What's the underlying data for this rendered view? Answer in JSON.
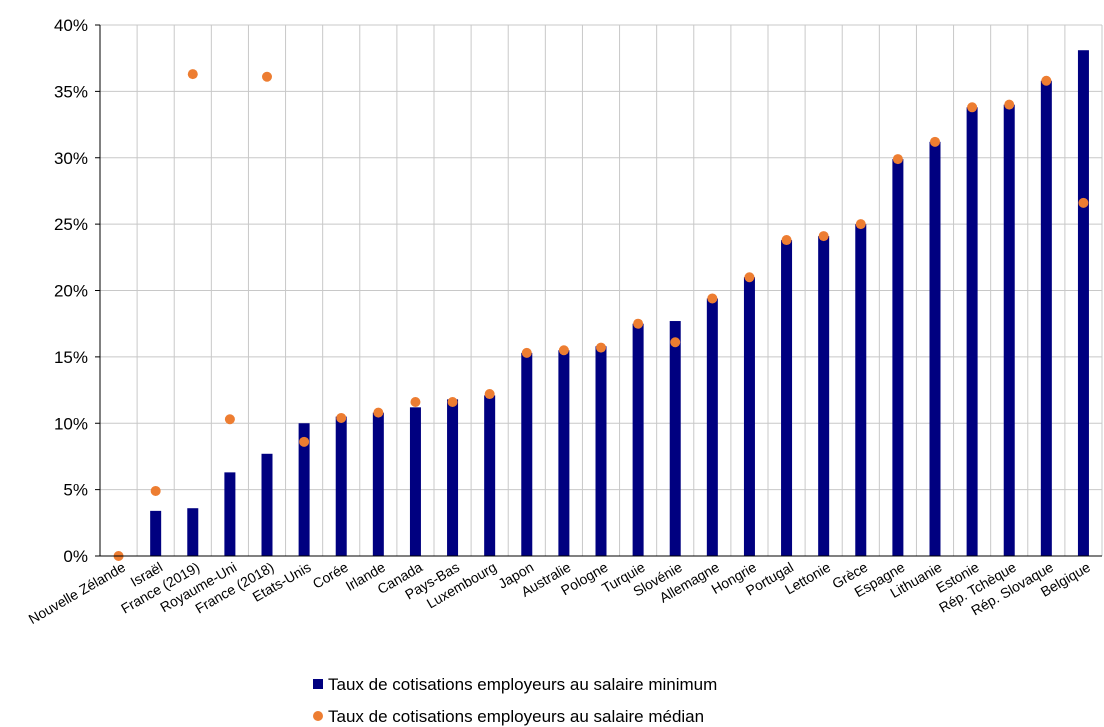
{
  "chart_data": {
    "type": "bar",
    "categories": [
      "Nouvelle Zélande",
      "Israël",
      "France (2019)",
      "Royaume-Uni",
      "France (2018)",
      "Etats-Unis",
      "Corée",
      "Irlande",
      "Canada",
      "Pays-Bas",
      "Luxembourg",
      "Japon",
      "Australie",
      "Pologne",
      "Turquie",
      "Slovénie",
      "Allemagne",
      "Hongrie",
      "Portugal",
      "Lettonie",
      "Grèce",
      "Espagne",
      "Lithuanie",
      "Estonie",
      "Rép. Tchèque",
      "Rép. Slovaque",
      "Belgique"
    ],
    "series": [
      {
        "name": "Taux de cotisations employeurs au salaire minimum",
        "render": "bar",
        "color": "#000080",
        "values": [
          0.0,
          3.4,
          3.6,
          6.3,
          7.7,
          10.0,
          10.5,
          10.8,
          11.2,
          11.8,
          12.1,
          15.3,
          15.5,
          15.8,
          17.5,
          17.7,
          19.4,
          21.0,
          23.8,
          24.1,
          25.0,
          29.9,
          31.2,
          33.8,
          34.0,
          35.8,
          38.1
        ]
      },
      {
        "name": "Taux de cotisations employeurs au salaire médian",
        "render": "dot",
        "color": "#ED7D31",
        "values": [
          0.0,
          4.9,
          36.3,
          10.3,
          36.1,
          8.6,
          10.4,
          10.8,
          11.6,
          11.6,
          12.2,
          15.3,
          15.5,
          15.7,
          17.5,
          16.1,
          19.4,
          21.0,
          23.8,
          24.1,
          25.0,
          29.9,
          31.2,
          33.8,
          34.0,
          35.8,
          26.6
        ]
      }
    ],
    "yticks": [
      "0%",
      "5%",
      "10%",
      "15%",
      "20%",
      "25%",
      "30%",
      "35%",
      "40%"
    ],
    "ylim": [
      0,
      40
    ],
    "unit": "%",
    "grid": true,
    "legend_position": "bottom"
  }
}
